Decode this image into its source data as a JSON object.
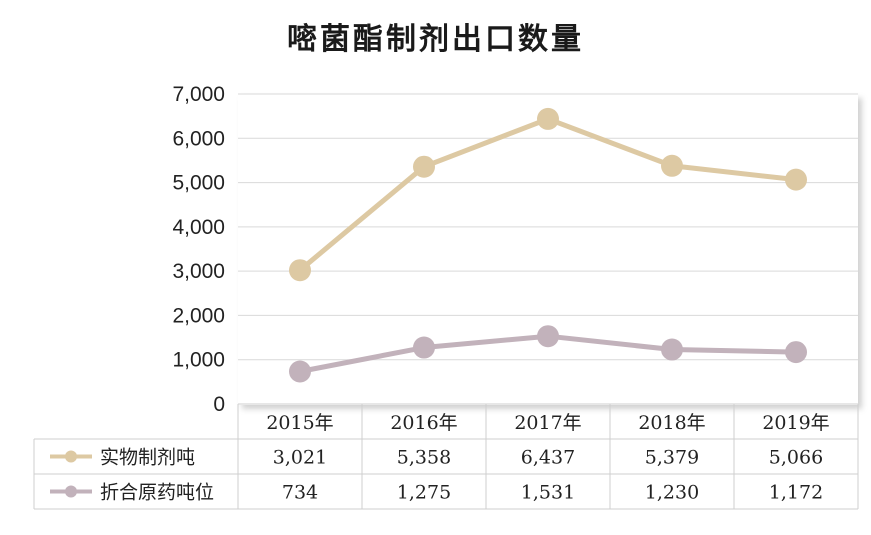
{
  "chart_data": {
    "type": "line",
    "title": "嘧菌酯制剂出口数量",
    "categories": [
      "2015年",
      "2016年",
      "2017年",
      "2018年",
      "2019年"
    ],
    "series": [
      {
        "name": "实物制剂吨",
        "values": [
          3021,
          5358,
          6437,
          5379,
          5066
        ],
        "labels": [
          "3,021",
          "5,358",
          "6,437",
          "5,379",
          "5,066"
        ],
        "color": "#ddc9a3"
      },
      {
        "name": "折合原药吨位",
        "values": [
          734,
          1275,
          1531,
          1230,
          1172
        ],
        "labels": [
          "734",
          "1,275",
          "1,531",
          "1,230",
          "1,172"
        ],
        "color": "#c2b2bb"
      }
    ],
    "y_ticks": [
      "0",
      "1,000",
      "2,000",
      "3,000",
      "4,000",
      "5,000",
      "6,000",
      "7,000"
    ],
    "ylim": [
      0,
      7000
    ],
    "grid": true,
    "legend": "data-table-left"
  }
}
